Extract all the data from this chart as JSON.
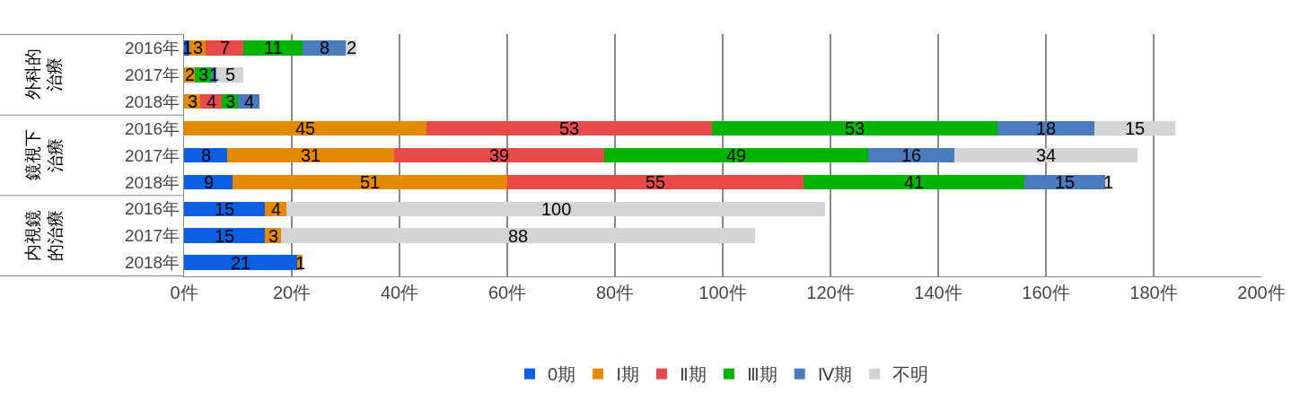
{
  "chart_data": {
    "type": "bar",
    "orientation": "horizontal",
    "stacked": true,
    "grid": "x",
    "legend": "bottom",
    "categories": [
      "2016年",
      "2017年",
      "2018年",
      "2016年",
      "2017年",
      "2018年",
      "2016年",
      "2017年",
      "2018年"
    ],
    "annotations": [
      "外科的治療",
      "鏡視下治療",
      "内視鏡的治療"
    ],
    "xlim": [
      0,
      200
    ],
    "xticks": [
      {
        "value": 0,
        "label": "0件"
      },
      {
        "value": 20,
        "label": "20件"
      },
      {
        "value": 40,
        "label": "40件"
      },
      {
        "value": 60,
        "label": "60件"
      },
      {
        "value": 80,
        "label": "80件"
      },
      {
        "value": 100,
        "label": "100件"
      },
      {
        "value": 120,
        "label": "120件"
      },
      {
        "value": 140,
        "label": "140件"
      },
      {
        "value": 160,
        "label": "160件"
      },
      {
        "value": 180,
        "label": "180件"
      },
      {
        "value": 200,
        "label": "200件"
      }
    ],
    "series": [
      {
        "name": "0期",
        "color": "#0b5fe3",
        "values": [
          1,
          0,
          0,
          0,
          8,
          9,
          15,
          15,
          21
        ],
        "value_labels": [
          "1",
          null,
          null,
          null,
          "8",
          "9",
          "15",
          "15",
          "21"
        ]
      },
      {
        "name": "Ⅰ期",
        "color": "#e48a00",
        "values": [
          3,
          2,
          3,
          45,
          31,
          51,
          4,
          3,
          1
        ],
        "value_labels": [
          "3",
          "2",
          "3",
          "45",
          "31",
          "51",
          "4",
          "3",
          "1"
        ]
      },
      {
        "name": "Ⅱ期",
        "color": "#e64a4a",
        "values": [
          7,
          0,
          4,
          53,
          39,
          55,
          0,
          0,
          0
        ],
        "value_labels": [
          "7",
          null,
          "4",
          "53",
          "39",
          "55",
          null,
          null,
          null
        ]
      },
      {
        "name": "Ⅲ期",
        "color": "#00b400",
        "values": [
          11,
          3,
          3,
          53,
          49,
          41,
          0,
          0,
          0
        ],
        "value_labels": [
          "11",
          "3",
          "3",
          "53",
          "49",
          "41",
          null,
          null,
          null
        ]
      },
      {
        "name": "Ⅳ期",
        "color": "#4a7bbf",
        "values": [
          8,
          1,
          4,
          18,
          16,
          15,
          0,
          0,
          0
        ],
        "value_labels": [
          "8",
          "1",
          "4",
          "18",
          "16",
          "15",
          null,
          null,
          null
        ]
      },
      {
        "name": "不明",
        "color": "#d4d4d4",
        "values": [
          2,
          5,
          0,
          15,
          34,
          1,
          100,
          88,
          0
        ],
        "value_labels": [
          "2",
          "5",
          null,
          "15",
          "34",
          "1",
          "100",
          "88",
          null
        ]
      }
    ]
  }
}
